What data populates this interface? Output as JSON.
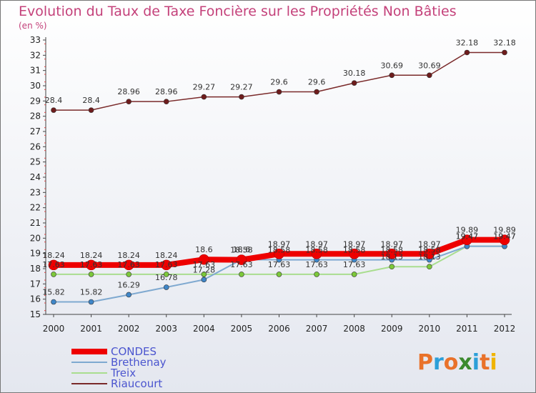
{
  "header": {
    "title": "Evolution du Taux de Taxe Foncière sur les Propriétés Non Bâties",
    "unit": "(en %)"
  },
  "logo": {
    "letters": [
      "P",
      "r",
      "o",
      "x",
      "i",
      "t",
      "i"
    ],
    "colors": [
      "#e9722a",
      "#2c9fd8",
      "#e9722a",
      "#3b8a2e",
      "#2c9fd8",
      "#e9722a",
      "#f0b400"
    ]
  },
  "chart_data": {
    "type": "line",
    "title": "Evolution du Taux de Taxe Foncière sur les Propriétés Non Bâties",
    "ylabel": "(en %)",
    "xlabel": "",
    "ylim": [
      15,
      33
    ],
    "grid": false,
    "legend_position": "bottom-left",
    "categories": [
      "2000",
      "2001",
      "2002",
      "2003",
      "2004",
      "2005",
      "2006",
      "2007",
      "2008",
      "2009",
      "2010",
      "2011",
      "2012"
    ],
    "yticks": [
      "15",
      "16",
      "17",
      "18",
      "19",
      "20",
      "21",
      "22",
      "23",
      "24",
      "25",
      "26",
      "27",
      "28",
      "29",
      "30",
      "31",
      "32",
      "33"
    ],
    "series": [
      {
        "name": "CONDES",
        "color": "#ee0000",
        "marker": "#ee0000",
        "values": [
          18.24,
          18.24,
          18.24,
          18.24,
          18.6,
          18.58,
          18.97,
          18.97,
          18.97,
          18.97,
          18.97,
          19.89,
          19.89
        ],
        "labels": [
          "18.24",
          "18.24",
          "18.24",
          "18.24",
          "18.6",
          "18.58",
          "18.97",
          "18.97",
          "18.97",
          "18.97",
          "18.97",
          "19.89",
          "19.89"
        ]
      },
      {
        "name": "Brethenay",
        "color": "#7fa9d0",
        "marker": "#3f86c8",
        "values": [
          15.82,
          15.82,
          16.29,
          16.78,
          17.28,
          18.6,
          18.58,
          18.58,
          18.58,
          18.58,
          18.58,
          19.47,
          19.47
        ],
        "labels": [
          "15.82",
          "15.82",
          "16.29",
          "16.78",
          "17.28",
          "18.6",
          "18.58",
          "18.58",
          "18.58",
          "18.58",
          "18.58",
          "19.47",
          "19.47"
        ]
      },
      {
        "name": "Treix",
        "color": "#a9dd8f",
        "marker": "#7cc83a",
        "values": [
          17.63,
          17.63,
          17.63,
          17.63,
          17.63,
          17.63,
          17.63,
          17.63,
          17.63,
          18.13,
          18.13,
          19.47,
          19.47
        ],
        "labels": [
          "17.63",
          "17.63",
          "17.63",
          "17.63",
          "17.63",
          "17.63",
          "17.63",
          "17.63",
          "17.63",
          "18.13",
          "18.13",
          "19.47",
          "19.47"
        ]
      },
      {
        "name": "Riaucourt",
        "color": "#7a2a2a",
        "marker": "#6e1c1c",
        "values": [
          28.4,
          28.4,
          28.96,
          28.96,
          29.27,
          29.27,
          29.6,
          29.6,
          30.18,
          30.69,
          30.69,
          32.18,
          32.18
        ],
        "labels": [
          "28.4",
          "28.4",
          "28.96",
          "28.96",
          "29.27",
          "29.27",
          "29.6",
          "29.6",
          "30.18",
          "30.69",
          "30.69",
          "32.18",
          "32.18"
        ]
      }
    ]
  }
}
